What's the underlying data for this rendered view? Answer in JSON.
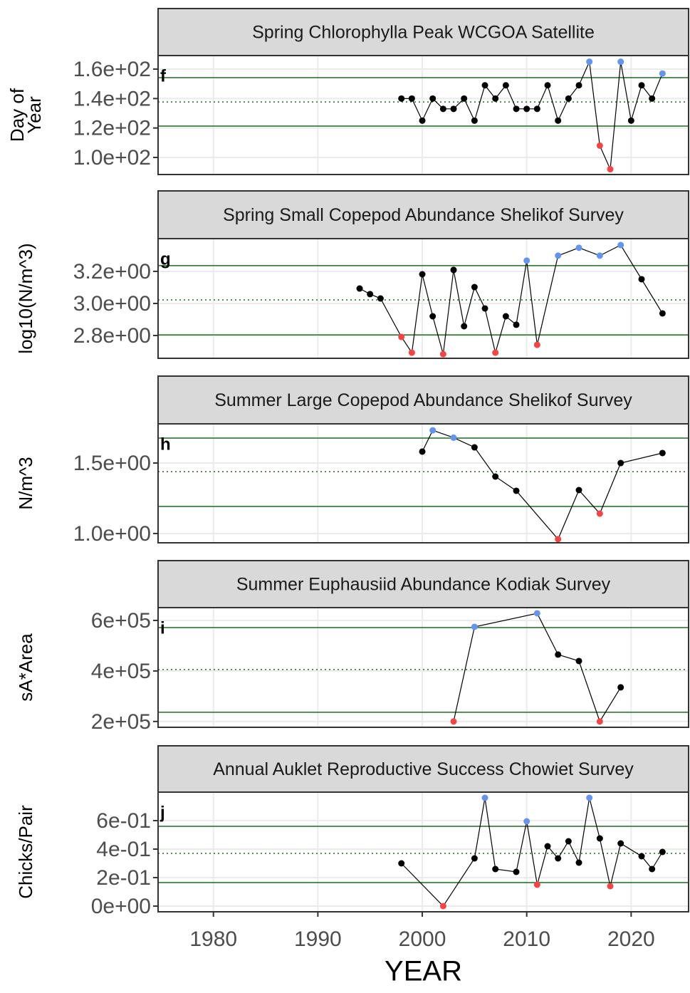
{
  "chart_data": [
    {
      "type": "line",
      "title": "Spring Chlorophylla Peak WCGOA Satellite",
      "annotation": "f",
      "ylabel": [
        "Day of",
        "Year"
      ],
      "x": [
        1998,
        1999,
        2000,
        2001,
        2002,
        2003,
        2004,
        2005,
        2006,
        2007,
        2008,
        2009,
        2010,
        2011,
        2012,
        2013,
        2014,
        2015,
        2016,
        2017,
        2018,
        2019,
        2020,
        2021,
        2022,
        2023
      ],
      "values": [
        140,
        140,
        125,
        140,
        133,
        133,
        140,
        125,
        149,
        140,
        149,
        133,
        133,
        133,
        149,
        125,
        140,
        149,
        165,
        108,
        92,
        165,
        125,
        149,
        140,
        157
      ],
      "xlim": [
        1974.7,
        2025.5
      ],
      "xticks": [
        1980,
        1990,
        2000,
        2010,
        2020
      ],
      "ylim": [
        88.4,
        169.2
      ],
      "yticks": [
        {
          "value": 100,
          "label": "1.0e+02"
        },
        {
          "value": 120,
          "label": "1.2e+02"
        },
        {
          "value": 140,
          "label": "1.4e+02"
        },
        {
          "value": 160,
          "label": "1.6e+02"
        }
      ],
      "reference_lines": [
        {
          "value": 154.2,
          "style": "solid"
        },
        {
          "value": 137.7,
          "style": "dotted"
        },
        {
          "value": 121.3,
          "style": "solid"
        }
      ],
      "line_color": "#000000",
      "reference_color": "#1e6b1e",
      "point_colors": {
        "above": "#6495ed",
        "below": "#f44444",
        "within": "#000000"
      },
      "grid": true
    },
    {
      "type": "line",
      "title": "Spring Small Copepod Abundance Shelikof Survey",
      "annotation": "g",
      "ylabel": [
        "log10(N/m^3)"
      ],
      "x": [
        1994,
        1995,
        1996,
        1998,
        1999,
        2000,
        2001,
        2002,
        2003,
        2004,
        2005,
        2006,
        2007,
        2008,
        2009,
        2010,
        2011,
        2013,
        2015,
        2017,
        2019,
        2021,
        2023
      ],
      "values": [
        3.093,
        3.058,
        3.031,
        2.791,
        2.693,
        3.182,
        2.92,
        2.684,
        3.209,
        2.858,
        3.102,
        2.969,
        2.693,
        2.92,
        2.867,
        3.267,
        2.742,
        3.298,
        3.347,
        3.298,
        3.364,
        3.151,
        2.938
      ],
      "xlim": [
        1974.7,
        2025.5
      ],
      "xticks": [
        1980,
        1990,
        2000,
        2010,
        2020
      ],
      "ylim": [
        2.658,
        3.404
      ],
      "yticks": [
        {
          "value": 2.8,
          "label": "2.8e+00"
        },
        {
          "value": 3.0,
          "label": "3.0e+00"
        },
        {
          "value": 3.2,
          "label": "3.2e+00"
        }
      ],
      "reference_lines": [
        {
          "value": 3.236,
          "style": "solid"
        },
        {
          "value": 3.022,
          "style": "dotted"
        },
        {
          "value": 2.804,
          "style": "solid"
        }
      ],
      "line_color": "#000000",
      "reference_color": "#1e6b1e",
      "point_colors": {
        "above": "#6495ed",
        "below": "#f44444",
        "within": "#000000"
      },
      "grid": true
    },
    {
      "type": "line",
      "title": "Summer Large Copepod Abundance Shelikof Survey",
      "annotation": "h",
      "ylabel": [
        "N/m^3"
      ],
      "x": [
        2000,
        2001,
        2003,
        2005,
        2007,
        2009,
        2013,
        2015,
        2017,
        2019,
        2023
      ],
      "values": [
        1.581,
        1.732,
        1.68,
        1.611,
        1.404,
        1.303,
        0.96,
        1.308,
        1.141,
        1.5,
        1.571
      ],
      "xlim": [
        1974.7,
        2025.5
      ],
      "xticks": [
        1980,
        1990,
        2000,
        2010,
        2020
      ],
      "ylim": [
        0.934,
        1.778
      ],
      "yticks": [
        {
          "value": 1.0,
          "label": "1.0e+00"
        },
        {
          "value": 1.5,
          "label": "1.5e+00"
        }
      ],
      "reference_lines": [
        {
          "value": 1.677,
          "style": "solid"
        },
        {
          "value": 1.439,
          "style": "dotted"
        },
        {
          "value": 1.192,
          "style": "solid"
        }
      ],
      "line_color": "#000000",
      "reference_color": "#1e6b1e",
      "point_colors": {
        "above": "#6495ed",
        "below": "#f44444",
        "within": "#000000"
      },
      "grid": true
    },
    {
      "type": "line",
      "title": "Summer Euphausiid Abundance Kodiak Survey",
      "annotation": "i",
      "ylabel": [
        "sA*Area"
      ],
      "x": [
        2003,
        2005,
        2011,
        2013,
        2015,
        2017,
        2019
      ],
      "values": [
        200000,
        574600,
        628200,
        464800,
        439400,
        200000,
        335200
      ],
      "xlim": [
        1974.7,
        2025.5
      ],
      "xticks": [
        1980,
        1990,
        2000,
        2010,
        2020
      ],
      "ylim": [
        177000,
        650700
      ],
      "yticks": [
        {
          "value": 200000,
          "label": "2e+05"
        },
        {
          "value": 400000,
          "label": "4e+05"
        },
        {
          "value": 600000,
          "label": "6e+05"
        }
      ],
      "reference_lines": [
        {
          "value": 571800,
          "style": "solid"
        },
        {
          "value": 405600,
          "style": "dotted"
        },
        {
          "value": 236600,
          "style": "solid"
        }
      ],
      "line_color": "#000000",
      "reference_color": "#1e6b1e",
      "point_colors": {
        "above": "#6495ed",
        "below": "#f44444",
        "within": "#000000"
      },
      "grid": true
    },
    {
      "type": "line",
      "title": "Annual Auklet Reproductive Success Chowiet Survey",
      "annotation": "j",
      "ylabel": [
        "Chicks/Pair"
      ],
      "xlabel": "YEAR",
      "x": [
        1998,
        2002,
        2005,
        2006,
        2007,
        2009,
        2010,
        2011,
        2012,
        2013,
        2014,
        2015,
        2016,
        2017,
        2018,
        2019,
        2021,
        2022,
        2023
      ],
      "values": [
        0.3,
        0,
        0.335,
        0.76,
        0.26,
        0.24,
        0.595,
        0.15,
        0.42,
        0.335,
        0.455,
        0.305,
        0.76,
        0.475,
        0.14,
        0.44,
        0.35,
        0.26,
        0.38
      ],
      "xlim": [
        1974.7,
        2025.5
      ],
      "xticks": [
        1980,
        1990,
        2000,
        2010,
        2020
      ],
      "ylim": [
        -0.04,
        0.8
      ],
      "yticks": [
        {
          "value": 0,
          "label": "0e+00"
        },
        {
          "value": 0.2,
          "label": "2e-01"
        },
        {
          "value": 0.4,
          "label": "4e-01"
        },
        {
          "value": 0.6,
          "label": "6e-01"
        }
      ],
      "reference_lines": [
        {
          "value": 0.56,
          "style": "solid"
        },
        {
          "value": 0.37,
          "style": "dotted"
        },
        {
          "value": 0.165,
          "style": "solid"
        }
      ],
      "line_color": "#000000",
      "reference_color": "#1e6b1e",
      "point_colors": {
        "above": "#6495ed",
        "below": "#f44444",
        "within": "#000000"
      },
      "grid": true
    }
  ]
}
